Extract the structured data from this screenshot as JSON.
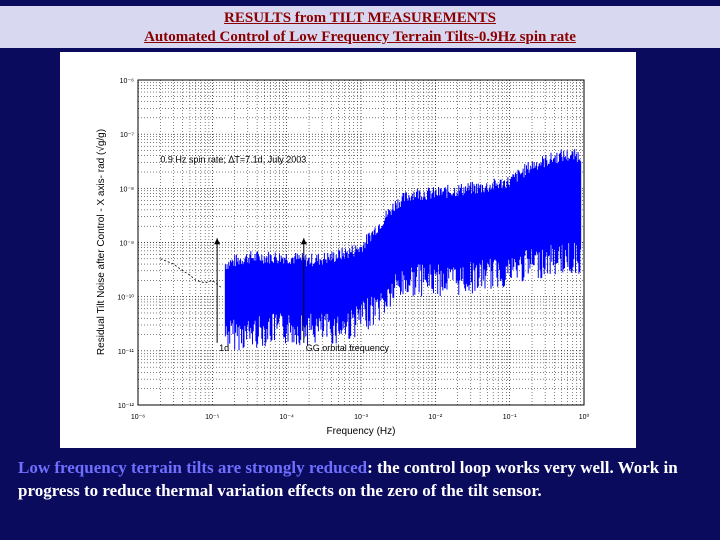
{
  "header": {
    "title_line1": "RESULTS  from TILT MEASUREMENTS",
    "title_line2": "Automated Control of Low Frequency Terrain Tilts-0.9Hz spin rate"
  },
  "caption": {
    "highlight": "Low frequency terrain tilts are strongly reduced",
    "rest": ": the control loop works very well. Work in progress to reduce thermal variation effects on the zero of the tilt sensor."
  },
  "chart_data": {
    "type": "line",
    "xscale": "log",
    "yscale": "log",
    "xlabel": "Frequency (Hz)",
    "ylabel": "Residual Tilt Noise after Control - X axis- rad (√g/g)",
    "xlim": [
      1e-06,
      1
    ],
    "ylim": [
      1e-12,
      1e-06
    ],
    "xtick_labels": [
      "10⁻⁶",
      "10⁻⁵",
      "10⁻⁴",
      "10⁻³",
      "10⁻²",
      "10⁻¹",
      "10⁰"
    ],
    "ytick_labels": [
      "10⁻¹²",
      "10⁻¹¹",
      "10⁻¹⁰",
      "10⁻⁹",
      "10⁻⁸",
      "10⁻⁷",
      "10⁻⁶"
    ],
    "grid": true,
    "annotations": [
      {
        "text": "0.9 Hz spin rate; ΔT=7.1d, July 2003",
        "x": 2e-06,
        "y": 3e-08
      },
      {
        "text": "1d",
        "x": 1.16e-05,
        "y": 1e-11
      },
      {
        "text": "GG orbital frequency",
        "x": 0.00017,
        "y": 1e-11
      }
    ],
    "series": [
      {
        "color": "#0000ff",
        "x": [
          1.5e-05,
          3e-05,
          6e-05,
          0.0001,
          0.0002,
          0.0004,
          0.0007,
          0.001,
          0.002,
          0.003,
          0.005,
          0.01,
          0.02,
          0.05,
          0.1,
          0.2,
          0.5,
          0.9
        ],
        "y_hi": [
          3e-10,
          4e-10,
          4e-10,
          4e-10,
          3.5e-10,
          4e-10,
          5e-10,
          6e-10,
          2e-09,
          4e-09,
          6e-09,
          6e-09,
          7e-09,
          8e-09,
          1e-08,
          2e-08,
          3e-08,
          3e-08
        ],
        "y_lo": [
          4e-11,
          4e-11,
          5e-11,
          5e-11,
          5e-11,
          5e-11,
          6e-11,
          8e-11,
          1.5e-10,
          3e-10,
          4e-10,
          4e-10,
          4e-10,
          5e-10,
          6e-10,
          8e-10,
          1e-09,
          1e-09
        ]
      },
      {
        "color": "#000000",
        "style": "dashed",
        "x": [
          2e-06,
          3e-06,
          4e-06,
          5e-06,
          6e-06,
          8e-06,
          1e-05,
          1.3e-05
        ],
        "y": [
          5e-10,
          4e-10,
          3e-10,
          2.5e-10,
          2e-10,
          1.8e-10,
          2e-10,
          1.5e-10
        ]
      }
    ]
  }
}
